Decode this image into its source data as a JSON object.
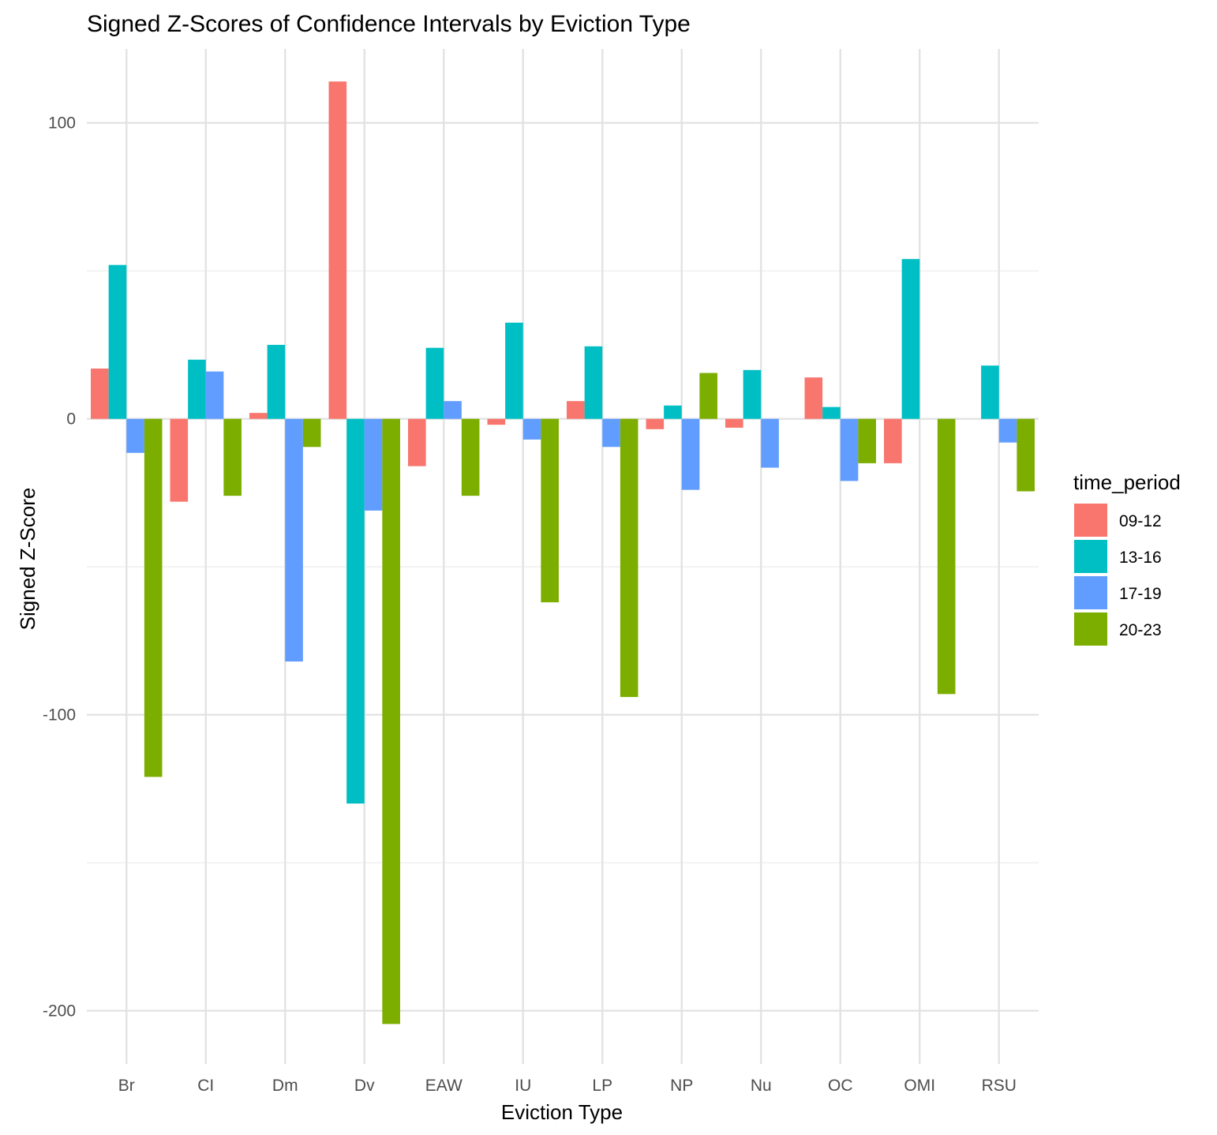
{
  "chart_data": {
    "type": "bar",
    "title": "Signed Z-Scores of Confidence Intervals by Eviction Type",
    "xlabel": "Eviction Type",
    "ylabel": "Signed Z-Score",
    "ylim": [
      -218,
      125
    ],
    "yticks": [
      100,
      0,
      -100,
      -200
    ],
    "grid": true,
    "legend_position": "right",
    "legend_title": "time_period",
    "categories": [
      "Br",
      "CI",
      "Dm",
      "Dv",
      "EAW",
      "IU",
      "LP",
      "NP",
      "Nu",
      "OC",
      "OMI",
      "RSU"
    ],
    "series": [
      {
        "name": "09-12",
        "color": "#F8766D",
        "values": [
          17,
          -28,
          2,
          114,
          -16,
          -2,
          6,
          -3.5,
          -3,
          14,
          -15,
          0
        ]
      },
      {
        "name": "13-16",
        "color": "#00BFC4",
        "values": [
          52,
          20,
          25,
          -130,
          24,
          32.5,
          24.5,
          4.5,
          16.5,
          4,
          54,
          18
        ]
      },
      {
        "name": "17-19",
        "color": "#619CFF",
        "values": [
          -11.5,
          16,
          -82,
          -31,
          6,
          -7,
          -9.5,
          -24,
          -16.5,
          -21,
          0,
          -8
        ]
      },
      {
        "name": "20-23",
        "color": "#7CAE00",
        "values": [
          -121,
          -26,
          -9.5,
          -204.5,
          -26,
          -62,
          -94,
          15.5,
          0,
          -15,
          -93,
          -24.5
        ]
      }
    ]
  }
}
